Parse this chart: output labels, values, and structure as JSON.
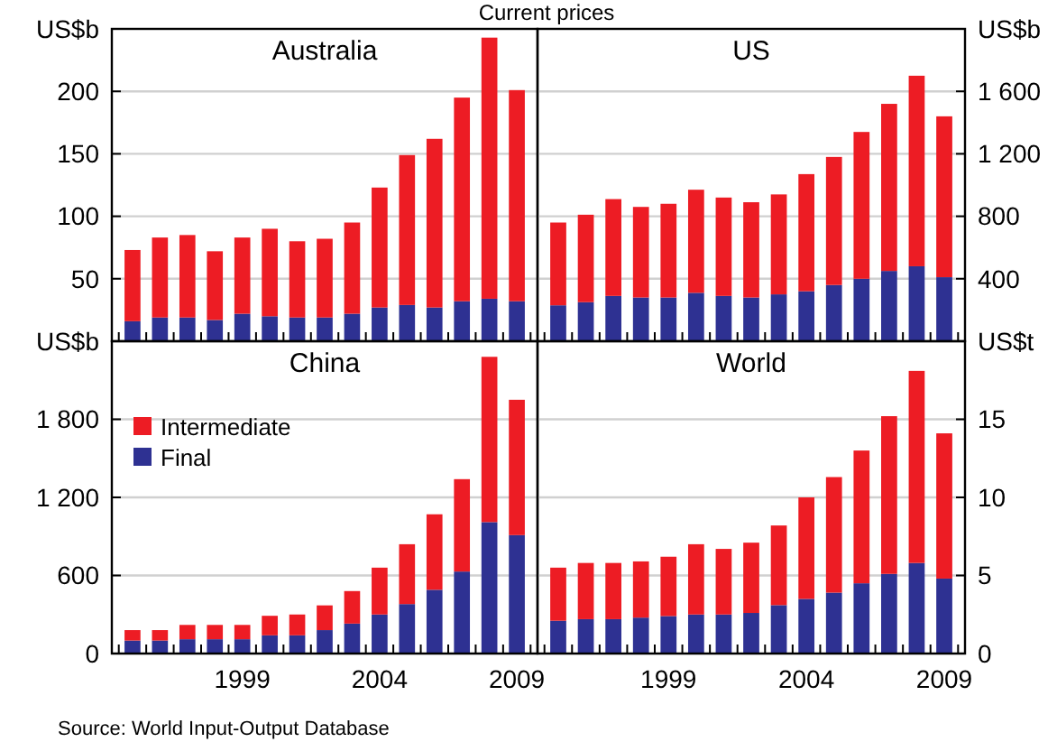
{
  "chart_data": [
    {
      "type": "bar",
      "title": "Australia",
      "subtitle": "Current prices",
      "ylabel": "US$b",
      "stacked": true,
      "categories": [
        null,
        null,
        null,
        null,
        null,
        null,
        null,
        null,
        null,
        null,
        null,
        null,
        null,
        null,
        null
      ],
      "ylim": [
        0,
        250
      ],
      "yticks": [
        50,
        100,
        150,
        200
      ],
      "grid": "y",
      "tick_labels": "y",
      "legend": false,
      "series": [
        {
          "color": "#2e3192",
          "values": [
            16,
            19,
            19,
            17,
            22,
            20,
            19,
            19,
            22,
            27,
            29,
            27,
            32,
            34,
            32
          ]
        },
        {
          "color": "#ed1c24",
          "values": [
            57,
            64,
            66,
            55,
            61,
            70,
            61,
            63,
            73,
            96,
            120,
            135,
            163,
            209,
            169
          ]
        }
      ]
    },
    {
      "type": "bar",
      "title": "US",
      "ylabel": "US$b",
      "stacked": true,
      "categories": [
        null,
        null,
        null,
        null,
        null,
        null,
        null,
        null,
        null,
        null,
        null,
        null,
        null,
        null,
        null
      ],
      "ylim": [
        0,
        2000
      ],
      "yticks": [
        400,
        800,
        {
          "value": 1200,
          "label": "1 200"
        },
        {
          "value": 1600,
          "label": "1 600"
        }
      ],
      "grid": "y",
      "tick_labels": "y",
      "legend": false,
      "series": [
        {
          "color": "#2e3192",
          "values": [
            230,
            250,
            290,
            280,
            280,
            310,
            290,
            280,
            300,
            320,
            360,
            400,
            450,
            480,
            410
          ]
        },
        {
          "color": "#ed1c24",
          "values": [
            530,
            560,
            620,
            580,
            600,
            660,
            630,
            610,
            640,
            750,
            820,
            940,
            1070,
            1220,
            1030
          ]
        }
      ]
    },
    {
      "type": "bar",
      "title": "China",
      "ylabel": "US$b",
      "stacked": true,
      "categories": [
        null,
        null,
        null,
        null,
        "1999",
        null,
        null,
        null,
        null,
        "2004",
        null,
        null,
        null,
        null,
        "2009"
      ],
      "ylim": [
        0,
        2400
      ],
      "yticks": [
        0,
        600,
        {
          "value": 1200,
          "label": "1 200"
        },
        {
          "value": 1800,
          "label": "1 800"
        }
      ],
      "grid": "y",
      "legend": "top left",
      "annotations": [
        "Source: World Input-Output Database"
      ],
      "series": [
        {
          "name": "Final",
          "color": "#2e3192",
          "values": [
            100,
            100,
            110,
            110,
            110,
            140,
            140,
            180,
            230,
            300,
            380,
            490,
            630,
            1010,
            910
          ]
        },
        {
          "name": "Intermediate",
          "color": "#ed1c24",
          "values": [
            80,
            80,
            110,
            110,
            110,
            150,
            160,
            190,
            250,
            360,
            460,
            580,
            710,
            1270,
            1040
          ]
        }
      ]
    },
    {
      "type": "bar",
      "title": "World",
      "ylabel": "US$t",
      "stacked": true,
      "categories": [
        null,
        null,
        null,
        null,
        "1999",
        null,
        null,
        null,
        null,
        "2004",
        null,
        null,
        null,
        null,
        "2009"
      ],
      "ylim": [
        0,
        20
      ],
      "yticks": [
        0,
        5,
        10,
        15
      ],
      "grid": "y",
      "legend": false,
      "series": [
        {
          "color": "#2e3192",
          "values": [
            2.1,
            2.2,
            2.2,
            2.3,
            2.4,
            2.5,
            2.5,
            2.6,
            3.1,
            3.5,
            3.9,
            4.5,
            5.1,
            5.8,
            4.8
          ]
        },
        {
          "color": "#ed1c24",
          "values": [
            3.4,
            3.6,
            3.6,
            3.6,
            3.8,
            4.5,
            4.2,
            4.5,
            5.1,
            6.5,
            7.4,
            8.5,
            10.1,
            12.3,
            9.3
          ]
        }
      ]
    }
  ]
}
